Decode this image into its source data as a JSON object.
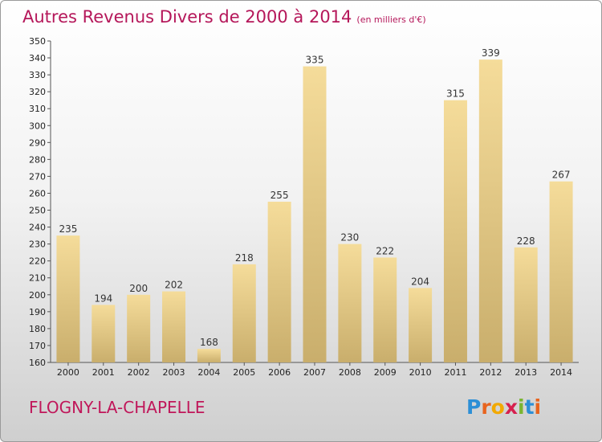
{
  "title": "Autres Revenus Divers de 2000 à 2014",
  "unit": "(en milliers d'€)",
  "place": "FLOGNY-LA-CHAPELLE",
  "logo": [
    "P",
    "r",
    "o",
    "x",
    "i",
    "t",
    "i"
  ],
  "colors": {
    "bar_light": "#f5dc9a",
    "bar_dark": "#c9ae6c",
    "title": "#b5175a"
  },
  "chart_data": {
    "type": "bar",
    "categories": [
      "2000",
      "2001",
      "2002",
      "2003",
      "2004",
      "2005",
      "2006",
      "2007",
      "2008",
      "2009",
      "2010",
      "2011",
      "2012",
      "2013",
      "2014"
    ],
    "values": [
      235,
      194,
      200,
      202,
      168,
      218,
      255,
      335,
      230,
      222,
      204,
      315,
      339,
      228,
      267
    ],
    "ylim": [
      160,
      350
    ],
    "yticks": [
      160,
      170,
      180,
      190,
      200,
      210,
      220,
      230,
      240,
      250,
      260,
      270,
      280,
      290,
      300,
      310,
      320,
      330,
      340,
      350
    ],
    "grid": false,
    "data_labels": true
  }
}
